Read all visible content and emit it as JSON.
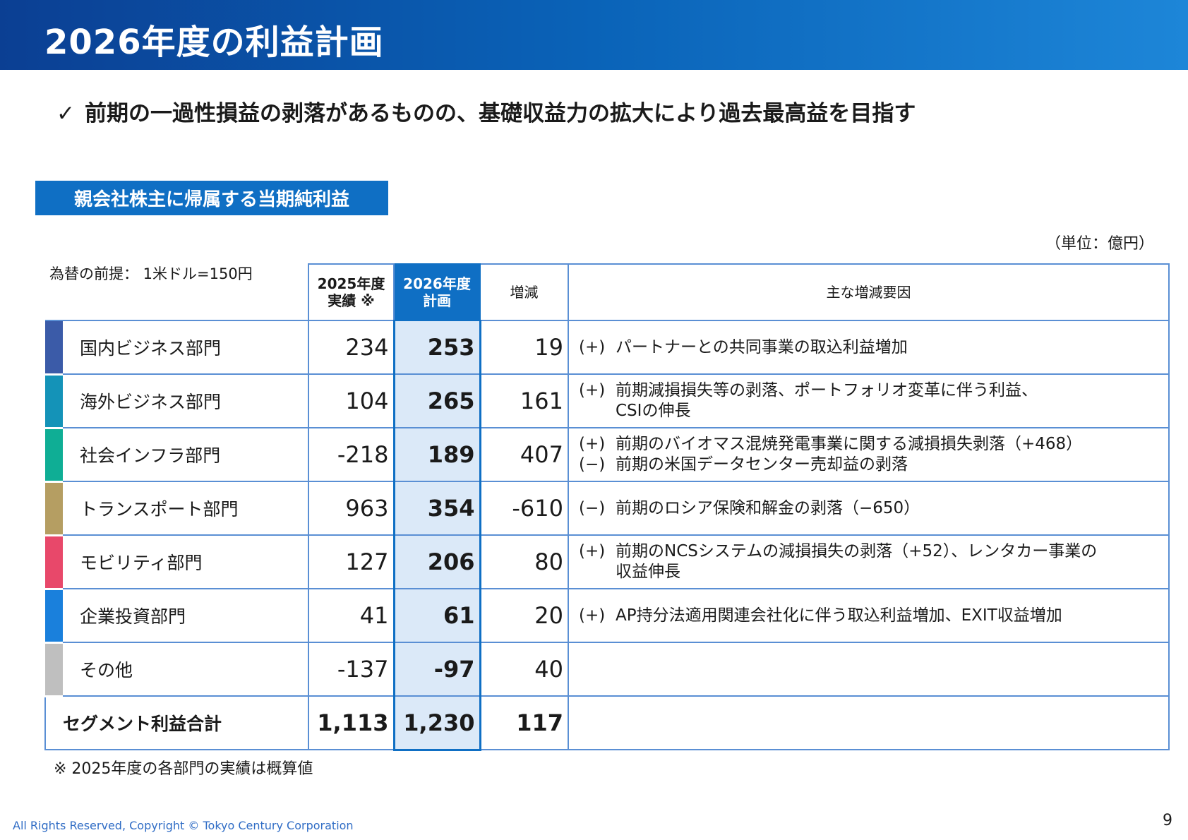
{
  "title": "2026年度の利益計画",
  "lead": {
    "check": "✓",
    "text": "前期の一過性損益の剥落があるものの、基礎収益力の拡大により過去最高益を目指す"
  },
  "section_label": "親会社株主に帰属する当期純利益",
  "unit": "（単位：億円）",
  "fx": "為替の前提： 1米ドル=150円",
  "headers": {
    "fy2025": "2025年度 実績 ※",
    "fy2026": "2026年度 計画",
    "diff": "増減",
    "reasons": "主な増減要因"
  },
  "colors": {
    "accent": "#0f6fc4",
    "plan_fill": "#dbe9f8",
    "rule": "#5a8fd4"
  },
  "rows": [
    {
      "name": "国内ビジネス部門",
      "color": "#3b5ba8",
      "fy2025": "234",
      "fy2026": "253",
      "diff": "19",
      "reasons": [
        {
          "sign": "(+)",
          "text": "パートナーとの共同事業の取込利益増加",
          "cont": ""
        }
      ]
    },
    {
      "name": "海外ビジネス部門",
      "color": "#1493b8",
      "fy2025": "104",
      "fy2026": "265",
      "diff": "161",
      "reasons": [
        {
          "sign": "(+)",
          "text": "前期減損損失等の剥落、ポートフォリオ変革に伴う利益、",
          "cont": "CSIの伸長"
        }
      ]
    },
    {
      "name": "社会インフラ部門",
      "color": "#0fae95",
      "fy2025": "-218",
      "fy2026": "189",
      "diff": "407",
      "reasons": [
        {
          "sign": "(+)",
          "text": "前期のバイオマス混焼発電事業に関する減損損失剥落（+468）",
          "cont": ""
        },
        {
          "sign": "(−)",
          "text": "前期の米国データセンター売却益の剥落",
          "cont": ""
        }
      ]
    },
    {
      "name": "トランスポート部門",
      "color": "#b59e62",
      "fy2025": "963",
      "fy2026": "354",
      "diff": "-610",
      "reasons": [
        {
          "sign": "(−)",
          "text": "前期のロシア保険和解金の剥落（−650）",
          "cont": ""
        }
      ]
    },
    {
      "name": "モビリティ部門",
      "color": "#e8486a",
      "fy2025": "127",
      "fy2026": "206",
      "diff": "80",
      "reasons": [
        {
          "sign": "(+)",
          "text": "前期のNCSシステムの減損損失の剥落（+52）、レンタカー事業の",
          "cont": "収益伸長"
        }
      ]
    },
    {
      "name": "企業投資部門",
      "color": "#1a80dc",
      "fy2025": "41",
      "fy2026": "61",
      "diff": "20",
      "reasons": [
        {
          "sign": "(+)",
          "text": "AP持分法適用関連会社化に伴う取込利益増加、EXIT収益増加",
          "cont": ""
        }
      ]
    },
    {
      "name": "その他",
      "color": "#bfbfbf",
      "fy2025": "-137",
      "fy2026": "-97",
      "diff": "40",
      "reasons": []
    }
  ],
  "total": {
    "name": "セグメント利益合計",
    "fy2025": "1,113",
    "fy2026": "1,230",
    "diff": "117"
  },
  "footnote": "※ 2025年度の各部門の実績は概算値",
  "copyright": "All Rights Reserved, Copyright © Tokyo Century Corporation",
  "page_number": "9"
}
